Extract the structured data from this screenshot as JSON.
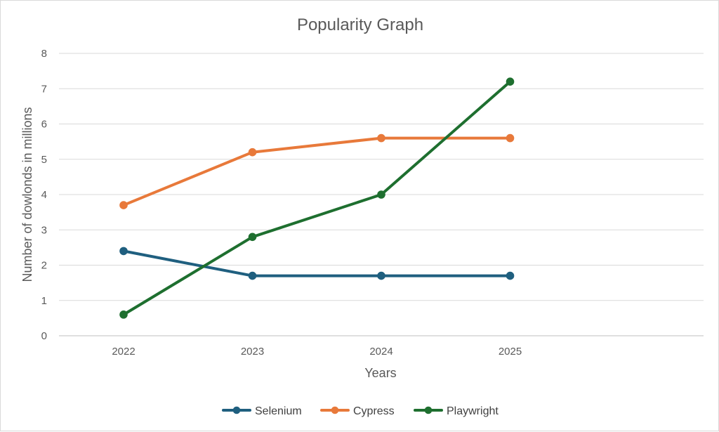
{
  "chart_data": {
    "type": "line",
    "title": "Popularity Graph",
    "xlabel": "Years",
    "ylabel": "Number of dowlonds in millions",
    "categories": [
      "2022",
      "2023",
      "2024",
      "2025"
    ],
    "ylim": [
      0,
      8
    ],
    "yticks": [
      "0",
      "1",
      "2",
      "3",
      "4",
      "5",
      "6",
      "7",
      "8"
    ],
    "grid": true,
    "legend_position": "bottom",
    "series": [
      {
        "name": "Selenium",
        "color": "#1f5f7f",
        "values": [
          2.4,
          1.7,
          1.7,
          1.7
        ]
      },
      {
        "name": "Cypress",
        "color": "#e8793a",
        "values": [
          3.7,
          5.2,
          5.6,
          5.6
        ]
      },
      {
        "name": "Playwright",
        "color": "#1e6f2f",
        "values": [
          0.6,
          2.8,
          4.0,
          7.2
        ]
      }
    ]
  }
}
